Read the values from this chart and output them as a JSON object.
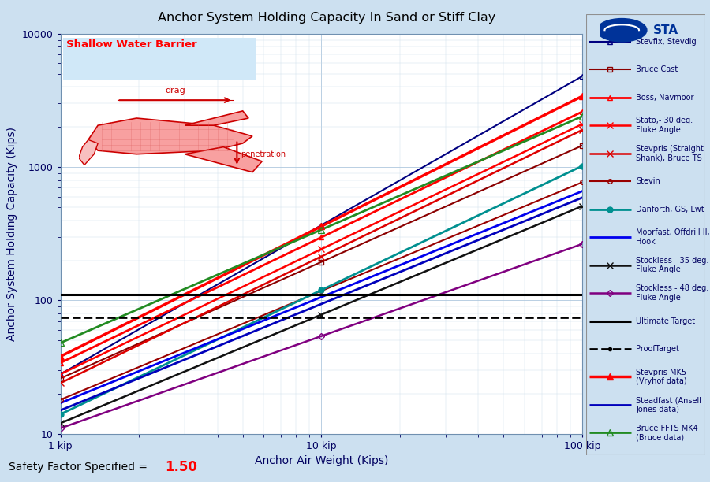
{
  "title": "Anchor System Holding Capacity In Sand or Stiff Clay",
  "xlabel": "Anchor Air Weight (Kips)",
  "ylabel": "Anchor System Holding Capacity (Kips)",
  "xlim": [
    1,
    100
  ],
  "ylim": [
    10,
    10000
  ],
  "bg_color": "#cce0f0",
  "plot_bg_color": "#ffffff",
  "shallow_water_label": "Shallow Water Barrier",
  "safety_factor_label": "Safety Factor Specified =",
  "safety_factor_value": "1.50",
  "ultimate_target_y": 110,
  "proof_target_y": 75,
  "series": [
    {
      "label": "Stevfix, Stevdig",
      "color": "#000080",
      "lw": 1.5,
      "marker": "^",
      "ms": 5,
      "mfc": "none",
      "y1": 28,
      "y100": 4800
    },
    {
      "label": "Bruce Cast",
      "color": "#8B0000",
      "lw": 1.5,
      "marker": "s",
      "ms": 5,
      "mfc": "none",
      "y1": 26,
      "y100": 1450
    },
    {
      "label": "Boss, Navmoor",
      "color": "#FF0000",
      "lw": 2.0,
      "marker": "^",
      "ms": 5,
      "mfc": "none",
      "y1": 34,
      "y100": 2600
    },
    {
      "label": "Stato,- 30 deg.\nFluke Angle",
      "color": "#FF0000",
      "lw": 1.8,
      "marker": "x",
      "ms": 6,
      "mfc": "#FF0000",
      "y1": 28,
      "y100": 2100
    },
    {
      "label": "Stevpris (Straight\nShank), Bruce TS",
      "color": "#DD0000",
      "lw": 1.8,
      "marker": "x",
      "ms": 6,
      "mfc": "#DD0000",
      "y1": 24,
      "y100": 1900
    },
    {
      "label": "Stevin",
      "color": "#990000",
      "lw": 1.5,
      "marker": "o",
      "ms": 4,
      "mfc": "none",
      "y1": 18,
      "y100": 770
    },
    {
      "label": "Danforth, GS, Lwt",
      "color": "#009090",
      "lw": 2.0,
      "marker": "o",
      "ms": 5,
      "mfc": "#009090",
      "y1": 14,
      "y100": 1020
    },
    {
      "label": "Moorfast, Offdrill II,\nHook",
      "color": "#0000EE",
      "lw": 2.0,
      "marker": null,
      "ms": 0,
      "mfc": "none",
      "y1": 17,
      "y100": 660
    },
    {
      "label": "Stockless - 35 deg.\nFluke Angle",
      "color": "#111111",
      "lw": 1.8,
      "marker": "x",
      "ms": 6,
      "mfc": "#111111",
      "y1": 12,
      "y100": 510
    },
    {
      "label": "Stockless - 48 deg.\nFluke Angle",
      "color": "#800080",
      "lw": 1.8,
      "marker": "D",
      "ms": 4,
      "mfc": "none",
      "y1": 11,
      "y100": 265
    },
    {
      "label": "Stevpris MK5\n(Vryhof data)",
      "color": "#FF0000",
      "lw": 2.5,
      "marker": "^",
      "ms": 6,
      "mfc": "#FF0000",
      "y1": 38,
      "y100": 3400
    },
    {
      "label": "Steadfast (Ansell\nJones data)",
      "color": "#0000BB",
      "lw": 2.0,
      "marker": null,
      "ms": 0,
      "mfc": "none",
      "y1": 15,
      "y100": 590
    },
    {
      "label": "Bruce FFTS MK4\n(Bruce data)",
      "color": "#228B22",
      "lw": 2.0,
      "marker": "^",
      "ms": 6,
      "mfc": "none",
      "y1": 48,
      "y100": 2400
    }
  ],
  "legend_order": [
    "Stevfix, Stevdig",
    "Bruce Cast",
    "Boss, Navmoor",
    "Stato,- 30 deg.\nFluke Angle",
    "Stevpris (Straight\nShank), Bruce TS",
    "Stevin",
    "Danforth, GS, Lwt",
    "Moorfast, Offdrill II,\nHook",
    "Stockless - 35 deg.\nFluke Angle",
    "Stockless - 48 deg.\nFluke Angle",
    "Ultimate Target",
    "ProofTarget",
    "Stevpris MK5\n(Vryhof data)",
    "Steadfast (Ansell\nJones data)",
    "Bruce FFTS MK4\n(Bruce data)"
  ]
}
